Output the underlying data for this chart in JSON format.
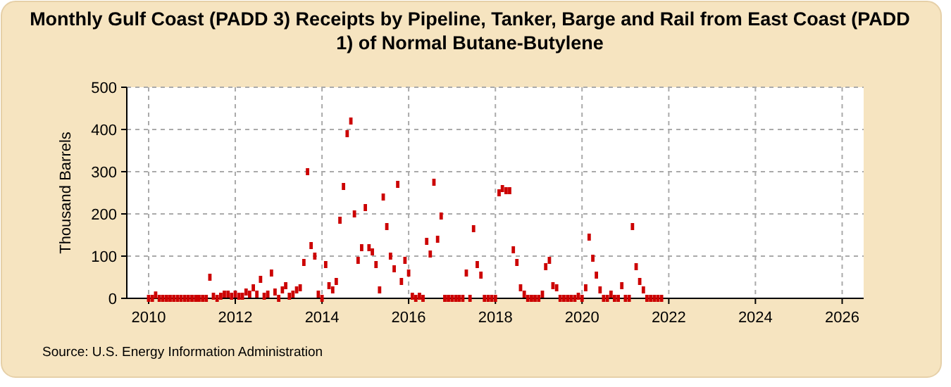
{
  "chart_data": {
    "type": "scatter",
    "title": "Monthly Gulf Coast (PADD 3) Receipts by Pipeline, Tanker, Barge and Rail from East Coast (PADD 1) of Normal Butane-Butylene",
    "ylabel": "Thousand Barrels",
    "annotations": [
      "Source: U.S. Energy Information Administration"
    ],
    "x": [
      "2010-01",
      "2010-02",
      "2010-03",
      "2010-04",
      "2010-05",
      "2010-06",
      "2010-07",
      "2010-08",
      "2010-09",
      "2010-10",
      "2010-11",
      "2010-12",
      "2011-01",
      "2011-02",
      "2011-03",
      "2011-04",
      "2011-05",
      "2011-06",
      "2011-07",
      "2011-08",
      "2011-09",
      "2011-10",
      "2011-11",
      "2011-12",
      "2012-01",
      "2012-02",
      "2012-03",
      "2012-04",
      "2012-05",
      "2012-06",
      "2012-07",
      "2012-08",
      "2012-09",
      "2012-10",
      "2012-11",
      "2012-12",
      "2013-01",
      "2013-02",
      "2013-03",
      "2013-04",
      "2013-05",
      "2013-06",
      "2013-07",
      "2013-08",
      "2013-09",
      "2013-10",
      "2013-11",
      "2013-12",
      "2014-01",
      "2014-02",
      "2014-03",
      "2014-04",
      "2014-05",
      "2014-06",
      "2014-07",
      "2014-08",
      "2014-09",
      "2014-10",
      "2014-11",
      "2014-12",
      "2015-01",
      "2015-02",
      "2015-03",
      "2015-04",
      "2015-05",
      "2015-06",
      "2015-07",
      "2015-08",
      "2015-09",
      "2015-10",
      "2015-11",
      "2015-12",
      "2016-01",
      "2016-02",
      "2016-03",
      "2016-04",
      "2016-05",
      "2016-06",
      "2016-07",
      "2016-08",
      "2016-09",
      "2016-10",
      "2016-11",
      "2016-12",
      "2017-01",
      "2017-02",
      "2017-03",
      "2017-04",
      "2017-05",
      "2017-06",
      "2017-07",
      "2017-08",
      "2017-09",
      "2017-10",
      "2017-11",
      "2017-12",
      "2018-01",
      "2018-02",
      "2018-03",
      "2018-04",
      "2018-05",
      "2018-06",
      "2018-07",
      "2018-08",
      "2018-09",
      "2018-10",
      "2018-11",
      "2018-12",
      "2019-01",
      "2019-02",
      "2019-03",
      "2019-04",
      "2019-05",
      "2019-06",
      "2019-07",
      "2019-08",
      "2019-09",
      "2019-10",
      "2019-11",
      "2019-12",
      "2020-01",
      "2020-02",
      "2020-03",
      "2020-04",
      "2020-05",
      "2020-06",
      "2020-07",
      "2020-08",
      "2020-09",
      "2020-10",
      "2020-11",
      "2020-12",
      "2021-01",
      "2021-02",
      "2021-03",
      "2021-04",
      "2021-05",
      "2021-06",
      "2021-07",
      "2021-08",
      "2021-09",
      "2021-10",
      "2021-11"
    ],
    "series": [
      {
        "color": "#cc0000",
        "values": [
          0,
          0,
          8,
          0,
          0,
          0,
          0,
          0,
          0,
          0,
          0,
          0,
          0,
          0,
          0,
          0,
          0,
          50,
          5,
          0,
          5,
          10,
          10,
          5,
          10,
          5,
          5,
          15,
          10,
          25,
          10,
          45,
          5,
          10,
          60,
          15,
          0,
          20,
          30,
          5,
          10,
          20,
          25,
          85,
          300,
          125,
          100,
          10,
          0,
          80,
          30,
          20,
          40,
          185,
          265,
          390,
          420,
          200,
          90,
          120,
          215,
          120,
          110,
          80,
          20,
          240,
          170,
          100,
          70,
          270,
          40,
          90,
          60,
          5,
          0,
          5,
          0,
          135,
          105,
          275,
          140,
          195,
          0,
          0,
          0,
          0,
          0,
          0,
          60,
          0,
          165,
          80,
          55,
          0,
          0,
          0,
          0,
          250,
          260,
          255,
          255,
          115,
          85,
          25,
          10,
          0,
          0,
          0,
          0,
          10,
          75,
          90,
          30,
          25,
          0,
          0,
          0,
          0,
          0,
          5,
          0,
          25,
          145,
          95,
          55,
          20,
          0,
          0,
          10,
          0,
          0,
          30,
          0,
          0,
          170,
          75,
          40,
          20,
          0,
          0,
          0,
          0,
          0
        ]
      }
    ],
    "xlim": [
      "2009-07",
      "2026-07"
    ],
    "xticks": [
      {
        "value": "2010",
        "label": "2010"
      },
      {
        "value": "2012",
        "label": "2012"
      },
      {
        "value": "2014",
        "label": "2014"
      },
      {
        "value": "2016",
        "label": "2016"
      },
      {
        "value": "2018",
        "label": "2018"
      },
      {
        "value": "2020",
        "label": "2020"
      },
      {
        "value": "2022",
        "label": "2022"
      },
      {
        "value": "2024",
        "label": "2024"
      },
      {
        "value": "2026",
        "label": "2026"
      }
    ],
    "ylim": [
      0,
      500
    ],
    "yticks": [
      0,
      100,
      200,
      300,
      400,
      500
    ],
    "grid": true,
    "marker": "square"
  }
}
